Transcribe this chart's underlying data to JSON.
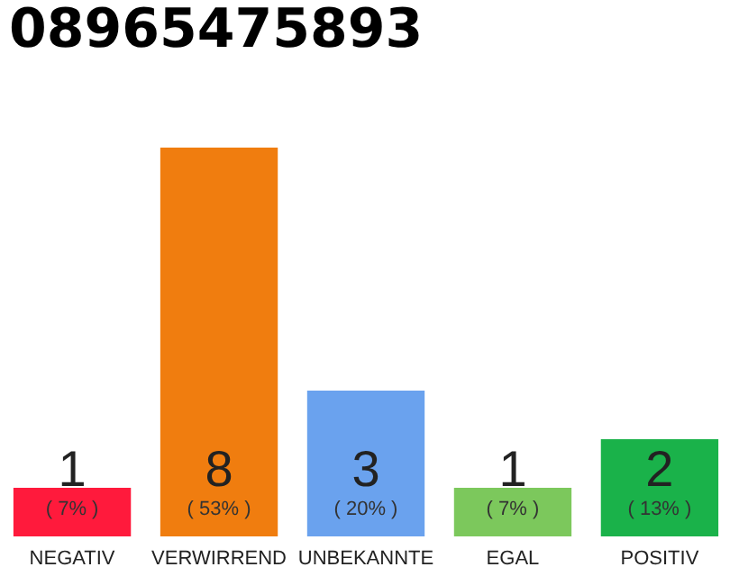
{
  "chart_data": {
    "type": "bar",
    "title": "08965475893",
    "categories": [
      "NEGATIV",
      "VERWIRREND",
      "UNBEKANNTE",
      "EGAL",
      "POSITIV"
    ],
    "values": [
      1,
      8,
      3,
      1,
      2
    ],
    "colors": [
      "#ff1a3c",
      "#f07d0f",
      "#6aa2ee",
      "#7cc85c",
      "#1ab24a"
    ],
    "ylim": [
      0,
      8
    ],
    "data_labels": true,
    "annotations": [
      "( 7% )",
      "( 53% )",
      "( 20% )",
      "( 7% )",
      "( 13% )"
    ]
  }
}
